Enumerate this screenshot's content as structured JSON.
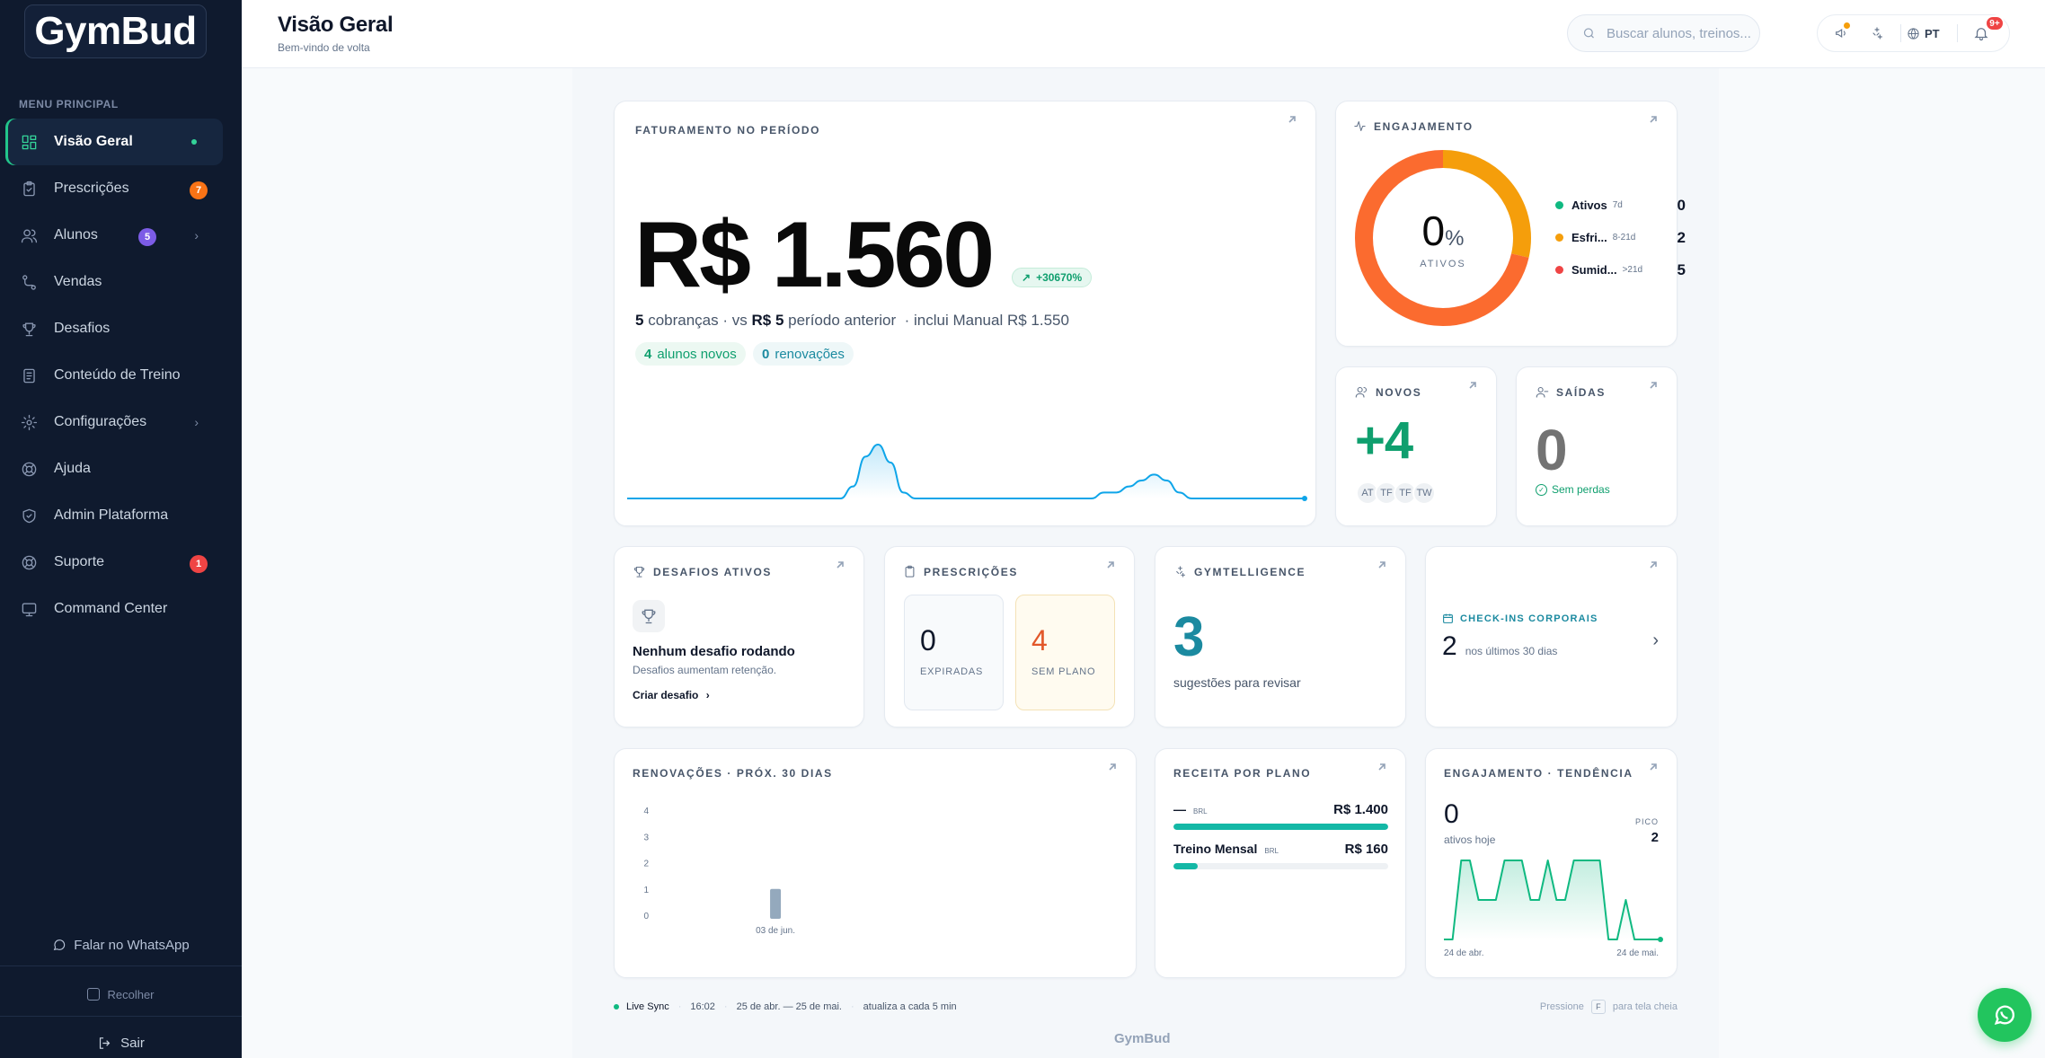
{
  "brand": {
    "logo": "GymBud",
    "footer": "GymBud"
  },
  "sidebar": {
    "section_label": "MENU PRINCIPAL",
    "items": [
      {
        "label": "Visão Geral",
        "icon": "grid-icon",
        "active": true
      },
      {
        "label": "Prescrições",
        "icon": "clipboard-icon",
        "badge": "7"
      },
      {
        "label": "Alunos",
        "icon": "users-icon",
        "badge": "5"
      },
      {
        "label": "Vendas",
        "icon": "route-icon"
      },
      {
        "label": "Desafios",
        "icon": "trophy-icon"
      },
      {
        "label": "Conteúdo de Treino",
        "icon": "document-icon"
      },
      {
        "label": "Configurações",
        "icon": "gear-icon"
      },
      {
        "label": "Ajuda",
        "icon": "lifebuoy-icon"
      },
      {
        "label": "Admin Plataforma",
        "icon": "shield-icon"
      },
      {
        "label": "Suporte",
        "icon": "lifebuoy-icon",
        "badge": "1"
      },
      {
        "label": "Command Center",
        "icon": "monitor-icon"
      }
    ],
    "whatsapp_label": "Falar no WhatsApp",
    "collapse_label": "Recolher",
    "logout_label": "Sair"
  },
  "header": {
    "title": "Visão Geral",
    "subtitle": "Bem-vindo de volta",
    "search_placeholder": "Buscar alunos, treinos...",
    "language": "PT",
    "notifications_badge": "9+"
  },
  "revenue": {
    "title": "FATURAMENTO NO PERÍODO",
    "amount": "R$ 1.560",
    "growth": "+30670%",
    "charges_count": "5",
    "charges_text": "cobranças · vs",
    "previous_amount": "R$ 5",
    "previous_text": "período anterior",
    "manual_text": "· inclui Manual R$ 1.550",
    "new_students_count": "4",
    "new_students_label": "alunos novos",
    "renewals_count": "0",
    "renewals_label": "renovações"
  },
  "engagement": {
    "title": "ENGAJAMENTO",
    "percent": "0",
    "percent_sign": "%",
    "center_label": "ATIVOS",
    "legend": [
      {
        "name": "Ativos",
        "range": "7d",
        "value": "0",
        "color": "#10b981"
      },
      {
        "name": "Esfri...",
        "range": "8-21d",
        "value": "2",
        "color": "#f59e0b"
      },
      {
        "name": "Sumid...",
        "range": ">21d",
        "value": "5",
        "color": "#ef4444"
      }
    ],
    "segments": [
      0,
      2,
      5
    ]
  },
  "new_students": {
    "title": "NOVOS",
    "value": "+4",
    "avatars": [
      "AT",
      "TF",
      "TF",
      "TW"
    ]
  },
  "exits": {
    "title": "SAÍDAS",
    "value": "0",
    "note": "Sem perdas"
  },
  "challenges": {
    "title": "DESAFIOS ATIVOS",
    "empty_title": "Nenhum desafio rodando",
    "empty_sub": "Desafios aumentam retenção.",
    "cta": "Criar desafio"
  },
  "prescriptions": {
    "title": "PRESCRIÇÕES",
    "expired_value": "0",
    "expired_label": "EXPIRADAS",
    "no_plan_value": "4",
    "no_plan_label": "SEM PLANO"
  },
  "gymtelligence": {
    "title": "GYMTELLIGENCE",
    "value": "3",
    "label": "sugestões para revisar"
  },
  "checkins": {
    "title": "CHECK-INS CORPORAIS",
    "value": "2",
    "label": "nos últimos 30 dias"
  },
  "renewals": {
    "title": "RENOVAÇÕES · PRÓX. 30 DIAS"
  },
  "plan_revenue": {
    "title": "RECEITA POR PLANO",
    "rows": [
      {
        "name": "—",
        "currency": "BRL",
        "amount": "R$ 1.400",
        "share": 1.0
      },
      {
        "name": "Treino Mensal",
        "currency": "BRL",
        "amount": "R$ 160",
        "share": 0.114
      }
    ]
  },
  "engagement_trend": {
    "title": "ENGAJAMENTO · TENDÊNCIA",
    "value": "0",
    "value_label": "ativos hoje",
    "peak_label": "PICO",
    "peak_value": "2",
    "start_label": "24 de abr.",
    "end_label": "24 de mai."
  },
  "footer": {
    "sync_label": "Live Sync",
    "time": "16:02",
    "range": "25 de abr. — 25 de mai.",
    "refresh": "atualiza a cada 5 min",
    "press_label": "Pressione",
    "key": "F",
    "fullscreen_label": "para tela cheia"
  },
  "chart_data": [
    {
      "type": "bar",
      "title": "RENOVAÇÕES · PRÓX. 30 DIAS",
      "categories": [
        "03 de jun."
      ],
      "values": [
        1
      ],
      "ylim": [
        0,
        4
      ],
      "yticks": [
        0,
        1,
        2,
        3,
        4
      ]
    },
    {
      "type": "area",
      "title": "FATURAMENTO NO PERÍODO",
      "values": [
        0,
        0,
        0,
        0,
        0,
        0,
        0,
        0,
        0,
        0,
        0,
        0,
        0,
        0,
        0,
        0,
        0,
        0,
        2,
        7,
        9,
        6,
        1,
        0,
        0,
        0,
        0,
        0,
        0,
        0,
        0,
        0,
        0,
        0,
        0,
        0,
        0,
        0,
        1,
        1,
        2,
        3,
        4,
        3,
        1,
        0,
        0,
        0,
        0,
        0,
        0,
        0,
        0,
        0,
        0
      ]
    },
    {
      "type": "area",
      "title": "ENGAJAMENTO · TENDÊNCIA",
      "values": [
        0,
        0,
        2,
        2,
        1,
        1,
        1,
        2,
        2,
        2,
        1,
        1,
        2,
        1,
        1,
        2,
        2,
        2,
        2,
        0,
        0,
        1,
        0,
        0,
        0,
        0
      ]
    }
  ],
  "colors": {
    "accent": "#10b981",
    "sidebar_bg": "#0f1a2e",
    "teal": "#1b8aa0",
    "orange": "#f97316"
  }
}
